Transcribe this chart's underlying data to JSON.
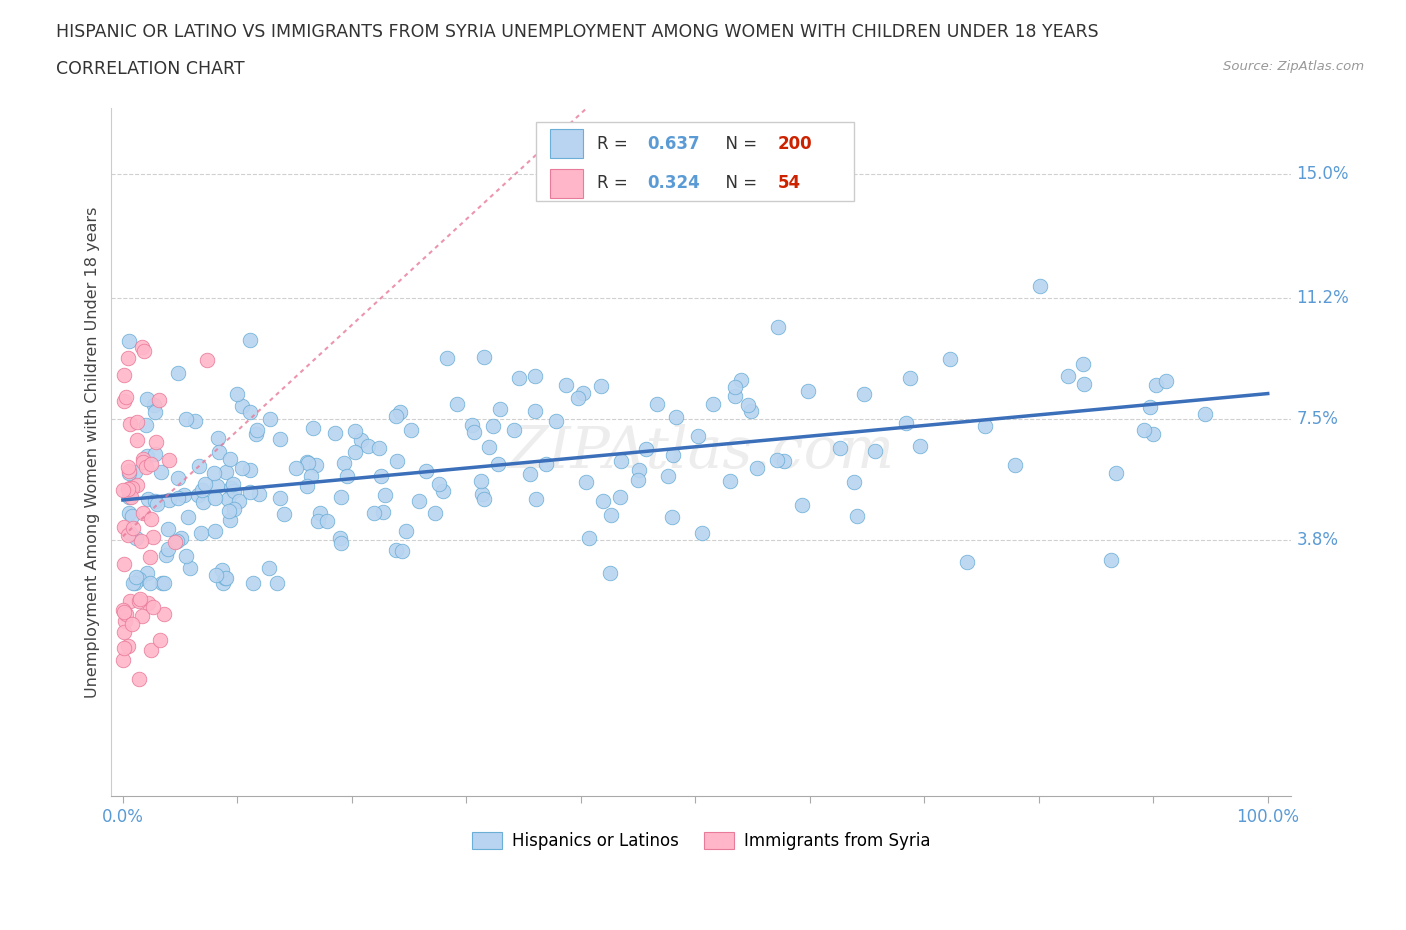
{
  "title_line1": "HISPANIC OR LATINO VS IMMIGRANTS FROM SYRIA UNEMPLOYMENT AMONG WOMEN WITH CHILDREN UNDER 18 YEARS",
  "title_line2": "CORRELATION CHART",
  "source_text": "Source: ZipAtlas.com",
  "ylabel": "Unemployment Among Women with Children Under 18 years",
  "xlim": [
    -1,
    102
  ],
  "ylim": [
    -4,
    17
  ],
  "yticks": [
    3.8,
    7.5,
    11.2,
    15.0
  ],
  "blue_R": 0.637,
  "blue_N": 200,
  "pink_R": 0.324,
  "pink_N": 54,
  "blue_color": "#b8d4f0",
  "blue_edge_color": "#6baed6",
  "blue_line_color": "#3b6fba",
  "pink_color": "#ffb6c8",
  "pink_edge_color": "#e87a9a",
  "pink_line_color": "#e87a9a",
  "watermark": "ZIPAtlas.com",
  "grid_color": "#d0d0d0",
  "title_color": "#333333",
  "axis_label_color": "#444444",
  "tick_label_color": "#5b9bd5",
  "legend_R_color": "#5b9bd5",
  "legend_N_color": "#cc2200",
  "background_color": "#ffffff"
}
